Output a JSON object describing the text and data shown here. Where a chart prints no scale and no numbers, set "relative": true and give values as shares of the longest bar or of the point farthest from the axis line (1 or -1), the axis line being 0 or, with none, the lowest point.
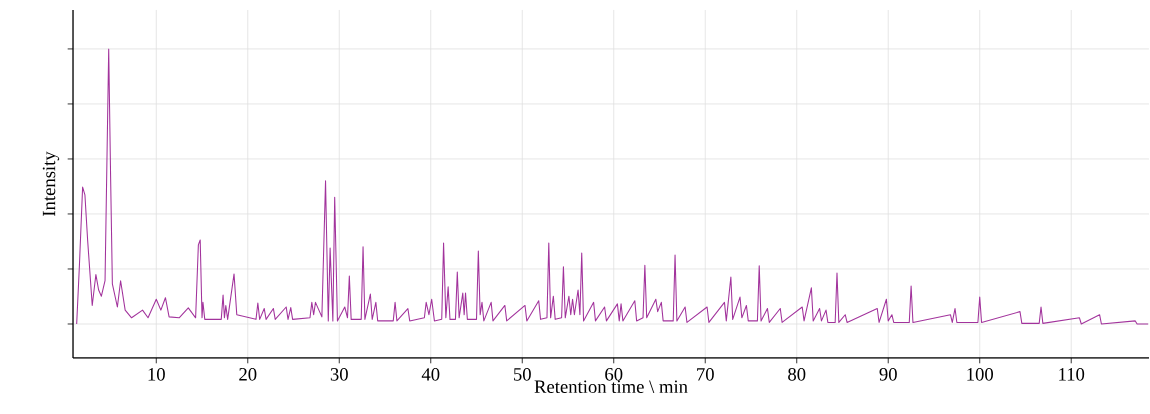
{
  "chart_data": {
    "type": "line",
    "relative": true,
    "xlabel": "Retention time \\ min",
    "ylabel": "Intensity",
    "xlim": [
      0.9,
      118.5
    ],
    "xticks": [
      10,
      20,
      30,
      40,
      50,
      60,
      70,
      80,
      90,
      100,
      110
    ],
    "grid": true,
    "tick_labels": "x",
    "series": [
      {
        "color": "#a2339c",
        "x": [
          1.3,
          1.6,
          1.95,
          2.2,
          2.5,
          3.0,
          3.4,
          3.7,
          4.0,
          4.4,
          4.8,
          5.0,
          5.2,
          5.75,
          6.1,
          6.6,
          7.3,
          8.5,
          9.1,
          10.0,
          10.5,
          11.0,
          11.4,
          12.5,
          13.5,
          14.3,
          14.6,
          14.8,
          15.0,
          15.1,
          15.3,
          17.1,
          17.3,
          17.45,
          17.6,
          17.8,
          18.5,
          18.8,
          20.9,
          21.1,
          21.3,
          21.8,
          22.0,
          22.8,
          23.0,
          24.2,
          24.4,
          24.7,
          24.9,
          26.8,
          27.0,
          27.2,
          27.4,
          28.1,
          28.5,
          28.8,
          29.0,
          29.3,
          29.5,
          29.8,
          30.6,
          30.9,
          31.1,
          31.3,
          32.4,
          32.6,
          32.8,
          33.4,
          33.6,
          34.0,
          34.2,
          35.9,
          36.1,
          36.3,
          37.5,
          37.7,
          39.3,
          39.5,
          39.8,
          40.1,
          40.4,
          41.2,
          41.4,
          41.65,
          41.9,
          42.1,
          42.7,
          42.9,
          43.1,
          43.5,
          43.65,
          43.8,
          44.0,
          45.0,
          45.2,
          45.4,
          45.6,
          45.8,
          46.6,
          46.8,
          48.1,
          48.3,
          50.3,
          50.5,
          51.8,
          52.0,
          52.7,
          52.9,
          53.1,
          53.4,
          53.6,
          54.3,
          54.5,
          54.7,
          55.1,
          55.3,
          55.5,
          55.7,
          56.1,
          56.3,
          56.5,
          56.7,
          57.8,
          58.0,
          59.0,
          59.2,
          60.4,
          60.6,
          60.8,
          61.0,
          62.3,
          62.5,
          63.2,
          63.4,
          63.6,
          64.6,
          64.8,
          65.2,
          65.4,
          66.5,
          66.7,
          66.9,
          67.8,
          68.0,
          70.2,
          70.4,
          72.1,
          72.3,
          72.8,
          73.0,
          73.8,
          74.0,
          74.5,
          74.7,
          75.7,
          75.9,
          76.1,
          76.8,
          77.0,
          78.2,
          78.4,
          80.6,
          80.8,
          81.6,
          81.8,
          82.5,
          82.7,
          83.2,
          83.4,
          84.2,
          84.4,
          84.6,
          85.3,
          85.5,
          88.8,
          89.0,
          89.8,
          90.0,
          90.4,
          90.6,
          92.3,
          92.5,
          92.7,
          96.8,
          97.0,
          97.3,
          97.5,
          99.8,
          100.0,
          100.2,
          104.4,
          104.6,
          106.5,
          106.7,
          106.9,
          110.9,
          111.1,
          113.1,
          113.3,
          117.0,
          117.2,
          118.4
        ],
        "values": [
          0.11,
          0.3,
          0.553,
          0.528,
          0.38,
          0.17,
          0.27,
          0.22,
          0.2,
          0.25,
          1.0,
          0.6,
          0.24,
          0.165,
          0.25,
          0.155,
          0.13,
          0.155,
          0.13,
          0.19,
          0.155,
          0.195,
          0.133,
          0.13,
          0.162,
          0.13,
          0.366,
          0.382,
          0.13,
          0.18,
          0.125,
          0.125,
          0.204,
          0.13,
          0.17,
          0.125,
          0.272,
          0.14,
          0.125,
          0.178,
          0.125,
          0.16,
          0.125,
          0.16,
          0.125,
          0.165,
          0.125,
          0.163,
          0.125,
          0.13,
          0.18,
          0.14,
          0.18,
          0.133,
          0.573,
          0.12,
          0.356,
          0.12,
          0.52,
          0.12,
          0.165,
          0.13,
          0.265,
          0.125,
          0.125,
          0.36,
          0.125,
          0.207,
          0.125,
          0.18,
          0.12,
          0.12,
          0.18,
          0.12,
          0.16,
          0.12,
          0.13,
          0.18,
          0.14,
          0.19,
          0.12,
          0.125,
          0.372,
          0.13,
          0.23,
          0.125,
          0.125,
          0.278,
          0.13,
          0.21,
          0.14,
          0.21,
          0.125,
          0.125,
          0.346,
          0.14,
          0.18,
          0.12,
          0.18,
          0.12,
          0.17,
          0.12,
          0.17,
          0.12,
          0.185,
          0.125,
          0.13,
          0.372,
          0.13,
          0.2,
          0.125,
          0.13,
          0.295,
          0.13,
          0.2,
          0.14,
          0.19,
          0.14,
          0.22,
          0.14,
          0.34,
          0.12,
          0.18,
          0.12,
          0.165,
          0.12,
          0.175,
          0.12,
          0.175,
          0.12,
          0.185,
          0.12,
          0.13,
          0.3,
          0.13,
          0.19,
          0.15,
          0.18,
          0.12,
          0.12,
          0.333,
          0.12,
          0.165,
          0.115,
          0.165,
          0.115,
          0.18,
          0.12,
          0.262,
          0.125,
          0.197,
          0.13,
          0.17,
          0.12,
          0.12,
          0.298,
          0.12,
          0.16,
          0.115,
          0.16,
          0.115,
          0.165,
          0.12,
          0.227,
          0.12,
          0.16,
          0.12,
          0.155,
          0.115,
          0.115,
          0.275,
          0.115,
          0.14,
          0.115,
          0.16,
          0.115,
          0.19,
          0.12,
          0.14,
          0.115,
          0.115,
          0.233,
          0.115,
          0.14,
          0.115,
          0.16,
          0.115,
          0.115,
          0.197,
          0.115,
          0.15,
          0.112,
          0.112,
          0.165,
          0.112,
          0.13,
          0.11,
          0.14,
          0.11,
          0.12,
          0.11,
          0.11
        ]
      }
    ]
  }
}
